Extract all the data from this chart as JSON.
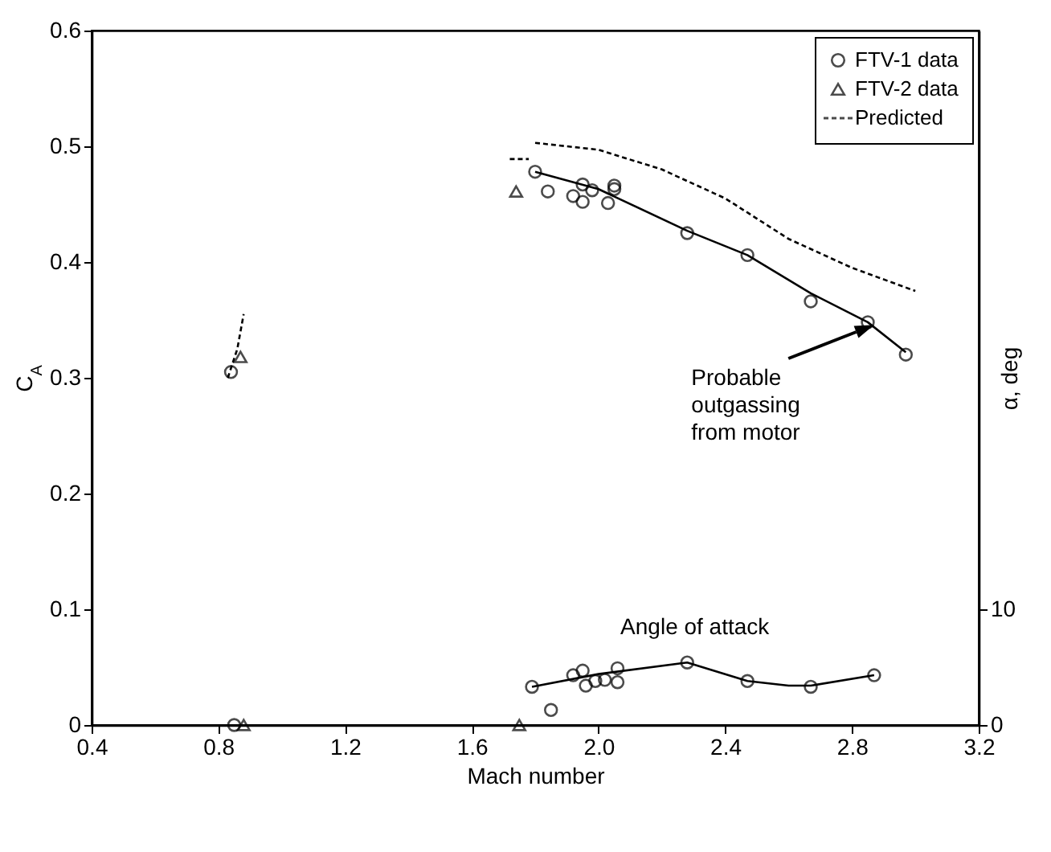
{
  "chart_data": {
    "type": "scatter",
    "xlabel": "Mach number",
    "ylabel": "C$_{A}$",
    "y2label": "α, deg",
    "xlim": [
      0.4,
      3.2
    ],
    "xticks": [
      0.4,
      0.8,
      1.2,
      1.6,
      {
        "value": 2,
        "label": "2.0"
      },
      2.4,
      2.8,
      3.2
    ],
    "ylim": [
      0,
      0.6
    ],
    "yticks": [
      0,
      0.1,
      0.2,
      0.3,
      0.4,
      0.5,
      0.6
    ],
    "y2lim": [
      0,
      60
    ],
    "y2ticks": [
      0,
      10
    ],
    "grid": false,
    "legend": "top right",
    "annotations": [
      "Probable outgassing from motor",
      "Angle of attack"
    ],
    "series": [
      {
        "name": "FTV-1 data",
        "marker": "circle",
        "color": "#000000",
        "x": [
          0.84,
          1.8,
          1.84,
          1.92,
          1.95,
          1.95,
          1.98,
          2.03,
          2.05,
          2.05,
          2.28,
          2.47,
          2.67,
          2.85,
          2.97
        ],
        "values": [
          0.305,
          0.478,
          0.461,
          0.457,
          0.467,
          0.452,
          0.462,
          0.451,
          0.466,
          0.463,
          0.425,
          0.406,
          0.366,
          0.348,
          0.32
        ]
      },
      {
        "name": "FTV-2 data",
        "marker": "triangle",
        "color": "#000000",
        "x": [
          0.87,
          1.74
        ],
        "values": [
          0.318,
          0.461
        ]
      },
      {
        "name": "Predicted",
        "type": "line",
        "line_style": "dashed",
        "color": "#000000",
        "x": [
          1.8,
          2.0,
          2.2,
          2.4,
          2.6,
          2.8,
          3.0
        ],
        "values": [
          0.503,
          0.497,
          0.48,
          0.455,
          0.42,
          0.395,
          0.375
        ]
      },
      {
        "type": "line",
        "line_style": "dashed",
        "color": "#000000",
        "x": [
          0.83,
          0.86,
          0.88
        ],
        "values": [
          0.3,
          0.325,
          0.355
        ]
      },
      {
        "type": "line",
        "line_style": "dashed",
        "color": "#000000",
        "x": [
          1.72,
          1.78
        ],
        "values": [
          0.489,
          0.489
        ]
      },
      {
        "type": "line",
        "line_style": "solid",
        "color": "#000000",
        "x": [
          1.8,
          2.0,
          2.28,
          2.47,
          2.67,
          2.85,
          2.97
        ],
        "values": [
          0.478,
          0.463,
          0.427,
          0.406,
          0.373,
          0.348,
          0.322
        ]
      },
      {
        "marker": "circle",
        "axis": "y2",
        "color": "#000000",
        "x": [
          0.85,
          1.79,
          1.85,
          1.92,
          1.95,
          1.96,
          1.99,
          2.02,
          2.06,
          2.06,
          2.28,
          2.47,
          2.67,
          2.87
        ],
        "values": [
          0,
          3.3,
          1.3,
          4.3,
          4.7,
          3.4,
          3.8,
          3.9,
          3.7,
          4.9,
          5.4,
          3.8,
          3.3,
          4.3
        ]
      },
      {
        "marker": "triangle",
        "axis": "y2",
        "color": "#000000",
        "x": [
          0.88,
          1.75
        ],
        "values": [
          0,
          0
        ]
      },
      {
        "type": "line",
        "line_style": "solid",
        "axis": "y2",
        "color": "#000000",
        "x": [
          1.79,
          2.0,
          2.28,
          2.47,
          2.6,
          2.67,
          2.87
        ],
        "values": [
          3.3,
          4.4,
          5.4,
          3.8,
          3.4,
          3.4,
          4.3
        ]
      }
    ]
  }
}
